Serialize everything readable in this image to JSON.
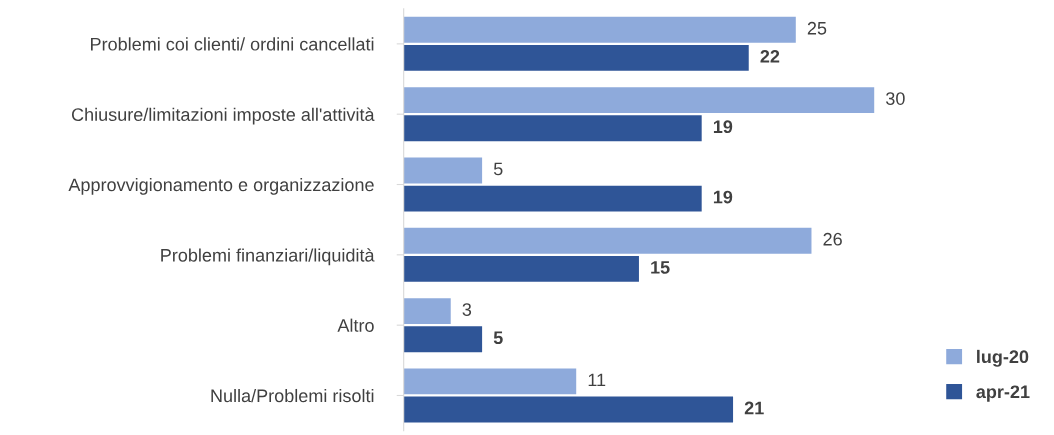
{
  "chart_data": {
    "type": "bar",
    "orientation": "horizontal",
    "categories": [
      "Problemi coi clienti/ ordini cancellati",
      "Chiusure/limitazioni imposte all'attività",
      "Approvvigionamento e organizzazione",
      "Problemi finanziari/liquidità",
      "Altro",
      "Nulla/Problemi risolti"
    ],
    "series": [
      {
        "name": "lug-20",
        "color": "#8eaadb",
        "values": [
          25,
          30,
          5,
          26,
          3,
          11
        ]
      },
      {
        "name": "apr-21",
        "color": "#2f5597",
        "values": [
          22,
          19,
          19,
          15,
          5,
          21
        ]
      }
    ],
    "data_labels": true,
    "legend": "bottom right",
    "grid": false
  }
}
